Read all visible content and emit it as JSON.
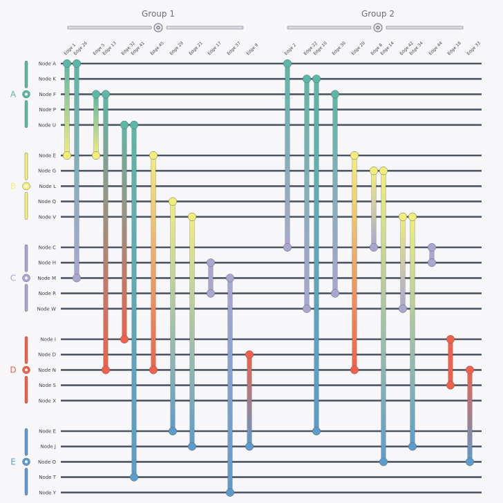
{
  "groups": [
    {
      "title": "Group 1",
      "toggle_icon": "collapse-toggle-icon",
      "edges": [
        "Edge 1",
        "Edge 26",
        "Edge 5",
        "Edge 13",
        "Edge 32",
        "Edge 41",
        "Edge 45",
        "Edge 29",
        "Edge 21",
        "Edge 17",
        "Edge 37",
        "Edge 9"
      ]
    },
    {
      "title": "Group 2",
      "toggle_icon": "collapse-toggle-icon",
      "edges": [
        "Edge 2",
        "Edge 22",
        "Edge 10",
        "Edge 30",
        "Edge 20",
        "Edge 8",
        "Edge 14",
        "Edge 42",
        "Edge 34",
        "Edge 44",
        "Edge 18",
        "Edge 33"
      ]
    }
  ],
  "clusters": [
    {
      "label": "A",
      "color": "#5bb8a6",
      "nodes": [
        "Node A",
        "Node K",
        "Node F",
        "Node P",
        "Node U"
      ]
    },
    {
      "label": "B",
      "color": "#f2ee7a",
      "nodes": [
        "Node E",
        "Node G",
        "Node L",
        "Node Q",
        "Node V"
      ]
    },
    {
      "label": "C",
      "color": "#a9a6d2",
      "nodes": [
        "Node C",
        "Node H",
        "Node M",
        "Node R",
        "Node W"
      ]
    },
    {
      "label": "D",
      "color": "#f0604a",
      "nodes": [
        "Node I",
        "Node D",
        "Node N",
        "Node S",
        "Node X"
      ]
    },
    {
      "label": "E",
      "color": "#5b9ccc",
      "nodes": [
        "Node E",
        "Node J",
        "Node O",
        "Node T",
        "Node Y"
      ]
    }
  ],
  "connections": [
    {
      "group": 0,
      "edge": 0,
      "from": [
        0,
        0
      ],
      "to": [
        1,
        0
      ]
    },
    {
      "group": 0,
      "edge": 1,
      "from": [
        0,
        0
      ],
      "to": [
        2,
        2
      ]
    },
    {
      "group": 0,
      "edge": 2,
      "from": [
        0,
        2
      ],
      "to": [
        1,
        0
      ]
    },
    {
      "group": 0,
      "edge": 3,
      "from": [
        0,
        2
      ],
      "to": [
        3,
        2
      ]
    },
    {
      "group": 0,
      "edge": 4,
      "from": [
        0,
        4
      ],
      "to": [
        3,
        0
      ]
    },
    {
      "group": 0,
      "edge": 5,
      "from": [
        0,
        4
      ],
      "to": [
        4,
        3
      ]
    },
    {
      "group": 0,
      "edge": 6,
      "from": [
        1,
        0
      ],
      "to": [
        3,
        2
      ]
    },
    {
      "group": 0,
      "edge": 7,
      "from": [
        1,
        3
      ],
      "to": [
        4,
        0
      ]
    },
    {
      "group": 0,
      "edge": 8,
      "from": [
        1,
        4
      ],
      "to": [
        4,
        1
      ]
    },
    {
      "group": 0,
      "edge": 9,
      "from": [
        2,
        1
      ],
      "to": [
        2,
        3
      ]
    },
    {
      "group": 0,
      "edge": 10,
      "from": [
        2,
        2
      ],
      "to": [
        4,
        4
      ]
    },
    {
      "group": 0,
      "edge": 11,
      "from": [
        3,
        1
      ],
      "to": [
        4,
        1
      ]
    },
    {
      "group": 1,
      "edge": 0,
      "from": [
        0,
        0
      ],
      "to": [
        2,
        0
      ]
    },
    {
      "group": 1,
      "edge": 1,
      "from": [
        0,
        1
      ],
      "to": [
        2,
        4
      ]
    },
    {
      "group": 1,
      "edge": 2,
      "from": [
        0,
        1
      ],
      "to": [
        4,
        0
      ]
    },
    {
      "group": 1,
      "edge": 3,
      "from": [
        0,
        2
      ],
      "to": [
        2,
        3
      ]
    },
    {
      "group": 1,
      "edge": 4,
      "from": [
        1,
        0
      ],
      "to": [
        3,
        2
      ]
    },
    {
      "group": 1,
      "edge": 5,
      "from": [
        1,
        1
      ],
      "to": [
        2,
        0
      ]
    },
    {
      "group": 1,
      "edge": 6,
      "from": [
        1,
        1
      ],
      "to": [
        4,
        2
      ]
    },
    {
      "group": 1,
      "edge": 7,
      "from": [
        1,
        4
      ],
      "to": [
        2,
        4
      ]
    },
    {
      "group": 1,
      "edge": 8,
      "from": [
        1,
        4
      ],
      "to": [
        4,
        1
      ]
    },
    {
      "group": 1,
      "edge": 9,
      "from": [
        2,
        0
      ],
      "to": [
        2,
        1
      ]
    },
    {
      "group": 1,
      "edge": 10,
      "from": [
        3,
        0
      ],
      "to": [
        3,
        3
      ]
    },
    {
      "group": 1,
      "edge": 11,
      "from": [
        3,
        2
      ],
      "to": [
        4,
        2
      ]
    }
  ]
}
